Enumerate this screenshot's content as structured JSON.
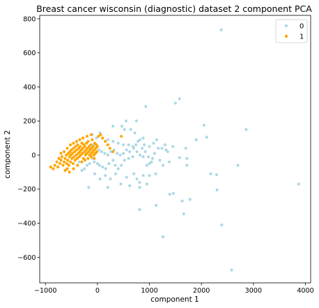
{
  "chart_data": {
    "type": "scatter",
    "title": "Breast cancer wisconsin (diagnostic) dataset 2 component PCA",
    "xlabel": "component 1",
    "ylabel": "component 2",
    "xlim": [
      -1110,
      4100
    ],
    "ylim": [
      -750,
      820
    ],
    "xticks": [
      -1000,
      0,
      1000,
      2000,
      3000,
      4000
    ],
    "yticks": [
      -600,
      -400,
      -200,
      0,
      200,
      400,
      600,
      800
    ],
    "grid": false,
    "legend_position": "top-right",
    "series": [
      {
        "name": "0",
        "color": "#add8e6",
        "points": [
          [
            2380,
            735
          ],
          [
            1580,
            330
          ],
          [
            1500,
            305
          ],
          [
            2050,
            175
          ],
          [
            2860,
            150
          ],
          [
            930,
            285
          ],
          [
            750,
            200
          ],
          [
            550,
            200
          ],
          [
            2100,
            105
          ],
          [
            1900,
            90
          ],
          [
            3870,
            -170
          ],
          [
            2390,
            -410
          ],
          [
            2580,
            -675
          ],
          [
            2700,
            -60
          ],
          [
            2300,
            -205
          ],
          [
            2180,
            -110
          ],
          [
            2290,
            -115
          ],
          [
            1780,
            -260
          ],
          [
            1630,
            -270
          ],
          [
            1660,
            -345
          ],
          [
            1390,
            -230
          ],
          [
            1460,
            -225
          ],
          [
            1260,
            -480
          ],
          [
            1130,
            -295
          ],
          [
            810,
            -320
          ],
          [
            1700,
            40
          ],
          [
            1720,
            -20
          ],
          [
            1720,
            -60
          ],
          [
            1580,
            -15
          ],
          [
            1350,
            20
          ],
          [
            1320,
            30
          ],
          [
            1240,
            40
          ],
          [
            1170,
            40
          ],
          [
            1100,
            10
          ],
          [
            1060,
            -20
          ],
          [
            1000,
            -50
          ],
          [
            950,
            -60
          ],
          [
            1000,
            -120
          ],
          [
            1120,
            -110
          ],
          [
            950,
            -170
          ],
          [
            810,
            -160
          ],
          [
            810,
            -190
          ],
          [
            620,
            -180
          ],
          [
            450,
            -170
          ],
          [
            200,
            -190
          ],
          [
            -170,
            -190
          ],
          [
            1000,
            50
          ],
          [
            900,
            60
          ],
          [
            880,
            100
          ],
          [
            780,
            80
          ],
          [
            720,
            130
          ],
          [
            640,
            150
          ],
          [
            520,
            150
          ],
          [
            470,
            170
          ],
          [
            300,
            170
          ],
          [
            50,
            130
          ],
          [
            -100,
            120
          ],
          [
            -20,
            100
          ],
          [
            100,
            100
          ],
          [
            200,
            90
          ],
          [
            300,
            80
          ],
          [
            400,
            70
          ],
          [
            500,
            60
          ],
          [
            600,
            60
          ],
          [
            700,
            40
          ],
          [
            760,
            20
          ],
          [
            820,
            0
          ],
          [
            880,
            -10
          ],
          [
            680,
            -10
          ],
          [
            600,
            -20
          ],
          [
            520,
            -30
          ],
          [
            460,
            -60
          ],
          [
            400,
            -80
          ],
          [
            340,
            -60
          ],
          [
            300,
            -30
          ],
          [
            220,
            -50
          ],
          [
            160,
            -80
          ],
          [
            100,
            -70
          ],
          [
            40,
            -60
          ],
          [
            0,
            -50
          ],
          [
            -60,
            -40
          ],
          [
            -100,
            -20
          ],
          [
            -150,
            -50
          ],
          [
            -200,
            -60
          ],
          [
            -250,
            -80
          ],
          [
            -300,
            -90
          ],
          [
            -130,
            40
          ],
          [
            -80,
            60
          ],
          [
            -30,
            40
          ],
          [
            30,
            30
          ],
          [
            80,
            20
          ],
          [
            140,
            10
          ],
          [
            200,
            0
          ],
          [
            260,
            20
          ],
          [
            320,
            30
          ],
          [
            380,
            10
          ],
          [
            440,
            0
          ],
          [
            500,
            10
          ],
          [
            560,
            30
          ],
          [
            620,
            20
          ],
          [
            680,
            50
          ],
          [
            740,
            60
          ],
          [
            820,
            90
          ],
          [
            860,
            40
          ],
          [
            920,
            20
          ],
          [
            980,
            -10
          ],
          [
            1040,
            -40
          ],
          [
            1080,
            70
          ],
          [
            1140,
            90
          ],
          [
            1200,
            -30
          ],
          [
            1260,
            -60
          ],
          [
            1300,
            60
          ],
          [
            1380,
            -40
          ],
          [
            1450,
            50
          ],
          [
            -50,
            -110
          ],
          [
            50,
            -140
          ],
          [
            150,
            -120
          ],
          [
            250,
            -140
          ],
          [
            350,
            -110
          ],
          [
            560,
            -130
          ],
          [
            700,
            -110
          ],
          [
            760,
            -140
          ],
          [
            880,
            -120
          ],
          [
            -220,
            10
          ],
          [
            -350,
            -40
          ]
        ]
      },
      {
        "name": "1",
        "color": "#ffa500",
        "points": [
          [
            -900,
            -70
          ],
          [
            -850,
            -80
          ],
          [
            -820,
            -60
          ],
          [
            -780,
            -40
          ],
          [
            -760,
            -70
          ],
          [
            -740,
            -20
          ],
          [
            -720,
            -50
          ],
          [
            -700,
            -30
          ],
          [
            -680,
            -10
          ],
          [
            -660,
            -60
          ],
          [
            -640,
            -40
          ],
          [
            -620,
            -20
          ],
          [
            -600,
            0
          ],
          [
            -590,
            -50
          ],
          [
            -580,
            -80
          ],
          [
            -570,
            -30
          ],
          [
            -560,
            10
          ],
          [
            -550,
            -60
          ],
          [
            -540,
            -10
          ],
          [
            -530,
            20
          ],
          [
            -520,
            -40
          ],
          [
            -510,
            0
          ],
          [
            -500,
            30
          ],
          [
            -490,
            -20
          ],
          [
            -480,
            10
          ],
          [
            -470,
            -50
          ],
          [
            -460,
            40
          ],
          [
            -450,
            -10
          ],
          [
            -440,
            20
          ],
          [
            -430,
            -30
          ],
          [
            -420,
            50
          ],
          [
            -410,
            0
          ],
          [
            -400,
            30
          ],
          [
            -390,
            -20
          ],
          [
            -380,
            60
          ],
          [
            -370,
            10
          ],
          [
            -360,
            40
          ],
          [
            -350,
            -10
          ],
          [
            -340,
            20
          ],
          [
            -330,
            50
          ],
          [
            -320,
            0
          ],
          [
            -310,
            30
          ],
          [
            -300,
            70
          ],
          [
            -290,
            10
          ],
          [
            -280,
            40
          ],
          [
            -270,
            -20
          ],
          [
            -260,
            60
          ],
          [
            -250,
            20
          ],
          [
            -240,
            50
          ],
          [
            -230,
            0
          ],
          [
            -220,
            30
          ],
          [
            -210,
            70
          ],
          [
            -200,
            10
          ],
          [
            -190,
            40
          ],
          [
            -180,
            80
          ],
          [
            -170,
            20
          ],
          [
            -160,
            50
          ],
          [
            -150,
            0
          ],
          [
            -140,
            30
          ],
          [
            -130,
            60
          ],
          [
            -120,
            10
          ],
          [
            -110,
            40
          ],
          [
            -100,
            90
          ],
          [
            -90,
            20
          ],
          [
            -80,
            50
          ],
          [
            -70,
            0
          ],
          [
            -60,
            30
          ],
          [
            -50,
            70
          ],
          [
            -40,
            10
          ],
          [
            -30,
            40
          ],
          [
            -20,
            60
          ],
          [
            -10,
            20
          ],
          [
            0,
            50
          ],
          [
            20,
            110
          ],
          [
            60,
            120
          ],
          [
            100,
            100
          ],
          [
            150,
            80
          ],
          [
            200,
            60
          ],
          [
            240,
            40
          ],
          [
            300,
            20
          ],
          [
            460,
            110
          ],
          [
            -620,
            -90
          ],
          [
            -540,
            -100
          ],
          [
            -460,
            -80
          ],
          [
            -380,
            -60
          ],
          [
            -300,
            -40
          ],
          [
            -240,
            -30
          ],
          [
            -180,
            -20
          ],
          [
            -120,
            -10
          ],
          [
            -60,
            -20
          ],
          [
            -700,
            10
          ],
          [
            -640,
            20
          ],
          [
            -580,
            40
          ],
          [
            -520,
            60
          ],
          [
            -460,
            70
          ],
          [
            -400,
            80
          ],
          [
            -340,
            90
          ],
          [
            -280,
            100
          ],
          [
            -200,
            110
          ],
          [
            -120,
            120
          ]
        ]
      }
    ]
  }
}
